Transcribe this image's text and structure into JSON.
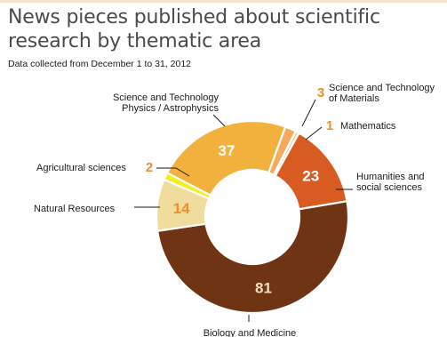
{
  "title": "News pieces published about scientific research by thematic area",
  "subtitle": "Data collected from December 1 to 31, 2012",
  "chart_data": {
    "type": "pie",
    "donut": true,
    "categories": [
      "Biology and Medicine",
      "Natural Resources",
      "Agricultural sciences",
      "Science and Technology Physics / Astrophysics",
      "Science and Technology of Materials",
      "Mathematics",
      "Humanities and social sciences"
    ],
    "values": [
      81,
      14,
      2,
      37,
      3,
      1,
      23
    ],
    "colors": [
      "#6e3414",
      "#f0dc9c",
      "#f7ec1c",
      "#f2b13d",
      "#f8a95d",
      "#fbd1a6",
      "#d85c22"
    ],
    "label_lines": [
      [
        "Biology and Medicine"
      ],
      [
        "Natural Resources"
      ],
      [
        "Agricultural sciences"
      ],
      [
        "Science and Technology",
        "Physics / Astrophysics"
      ],
      [
        "Science and Technology",
        "of Materials"
      ],
      [
        "Mathematics"
      ],
      [
        "Humanities and",
        "social sciences"
      ]
    ],
    "value_labels": [
      "81",
      "14",
      "2",
      "37",
      "3",
      "1",
      "23"
    ]
  }
}
